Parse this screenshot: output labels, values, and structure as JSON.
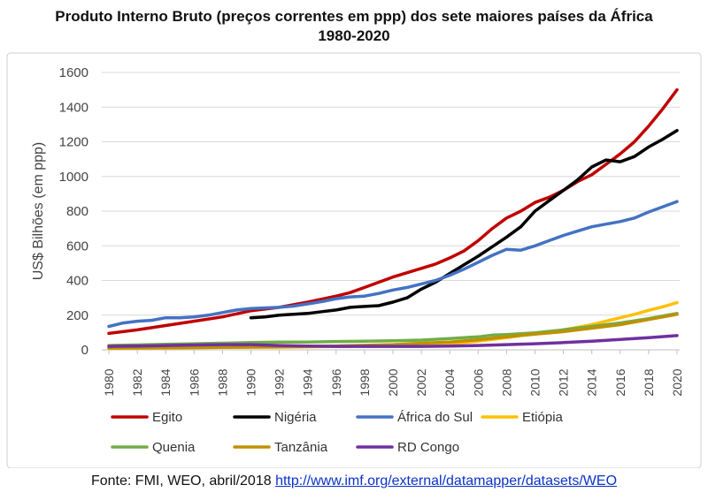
{
  "header": {
    "title_line1": "Produto Interno Bruto (preços correntes em ppp) dos sete maiores países da África",
    "title_line2": "1980-2020"
  },
  "footer": {
    "source_label": "Fonte: FMI, WEO, abril/2018",
    "source_link": "http://www.imf.org/external/datamapper/datasets/WEO"
  },
  "chart_data": {
    "type": "line",
    "ylabel": "US$ Bilhões (em ppp)",
    "xlabel": "",
    "ylim": [
      0,
      1600
    ],
    "yticks": [
      0,
      200,
      400,
      600,
      800,
      1000,
      1200,
      1400,
      1600
    ],
    "xlim": [
      1980,
      2020
    ],
    "xticks": [
      1980,
      1982,
      1984,
      1986,
      1988,
      1990,
      1992,
      1994,
      1996,
      1998,
      2000,
      2002,
      2004,
      2006,
      2008,
      2010,
      2012,
      2014,
      2016,
      2018,
      2020
    ],
    "grid": "horizontal",
    "legend_position": "bottom",
    "series": [
      {
        "name": "Egito",
        "color": "#c00000",
        "points": [
          [
            1980,
            95
          ],
          [
            1982,
            115
          ],
          [
            1984,
            140
          ],
          [
            1986,
            165
          ],
          [
            1988,
            190
          ],
          [
            1990,
            225
          ],
          [
            1992,
            245
          ],
          [
            1994,
            275
          ],
          [
            1996,
            310
          ],
          [
            1997,
            330
          ],
          [
            1998,
            360
          ],
          [
            2000,
            420
          ],
          [
            2002,
            470
          ],
          [
            2003,
            495
          ],
          [
            2004,
            530
          ],
          [
            2005,
            570
          ],
          [
            2006,
            630
          ],
          [
            2007,
            700
          ],
          [
            2008,
            760
          ],
          [
            2009,
            800
          ],
          [
            2010,
            850
          ],
          [
            2011,
            880
          ],
          [
            2012,
            920
          ],
          [
            2013,
            970
          ],
          [
            2014,
            1010
          ],
          [
            2015,
            1070
          ],
          [
            2016,
            1130
          ],
          [
            2017,
            1200
          ],
          [
            2018,
            1290
          ],
          [
            2019,
            1390
          ],
          [
            2020,
            1500
          ]
        ]
      },
      {
        "name": "Nigéria",
        "color": "#000000",
        "points": [
          [
            1990,
            185
          ],
          [
            1991,
            190
          ],
          [
            1992,
            200
          ],
          [
            1993,
            205
          ],
          [
            1994,
            210
          ],
          [
            1995,
            220
          ],
          [
            1996,
            230
          ],
          [
            1997,
            245
          ],
          [
            1998,
            250
          ],
          [
            1999,
            255
          ],
          [
            2000,
            275
          ],
          [
            2001,
            300
          ],
          [
            2002,
            350
          ],
          [
            2003,
            390
          ],
          [
            2004,
            440
          ],
          [
            2005,
            490
          ],
          [
            2006,
            540
          ],
          [
            2007,
            595
          ],
          [
            2008,
            650
          ],
          [
            2009,
            710
          ],
          [
            2010,
            800
          ],
          [
            2011,
            860
          ],
          [
            2012,
            920
          ],
          [
            2013,
            980
          ],
          [
            2014,
            1055
          ],
          [
            2015,
            1095
          ],
          [
            2016,
            1085
          ],
          [
            2017,
            1115
          ],
          [
            2018,
            1170
          ],
          [
            2019,
            1215
          ],
          [
            2020,
            1265
          ]
        ]
      },
      {
        "name": "África do Sul",
        "color": "#4472c4",
        "points": [
          [
            1980,
            135
          ],
          [
            1981,
            155
          ],
          [
            1982,
            165
          ],
          [
            1983,
            170
          ],
          [
            1984,
            185
          ],
          [
            1985,
            185
          ],
          [
            1986,
            190
          ],
          [
            1987,
            200
          ],
          [
            1988,
            215
          ],
          [
            1989,
            230
          ],
          [
            1990,
            238
          ],
          [
            1992,
            245
          ],
          [
            1993,
            252
          ],
          [
            1994,
            265
          ],
          [
            1995,
            278
          ],
          [
            1996,
            295
          ],
          [
            1997,
            305
          ],
          [
            1998,
            310
          ],
          [
            1999,
            325
          ],
          [
            2000,
            345
          ],
          [
            2001,
            360
          ],
          [
            2002,
            380
          ],
          [
            2003,
            400
          ],
          [
            2004,
            430
          ],
          [
            2005,
            465
          ],
          [
            2006,
            505
          ],
          [
            2007,
            545
          ],
          [
            2008,
            580
          ],
          [
            2009,
            575
          ],
          [
            2010,
            600
          ],
          [
            2011,
            630
          ],
          [
            2012,
            660
          ],
          [
            2013,
            685
          ],
          [
            2014,
            710
          ],
          [
            2015,
            725
          ],
          [
            2016,
            740
          ],
          [
            2017,
            760
          ],
          [
            2018,
            795
          ],
          [
            2019,
            825
          ],
          [
            2020,
            855
          ]
        ]
      },
      {
        "name": "Etiópia",
        "color": "#ffc000",
        "points": [
          [
            1980,
            8
          ],
          [
            1984,
            10
          ],
          [
            1988,
            14
          ],
          [
            1992,
            15
          ],
          [
            1996,
            20
          ],
          [
            2000,
            25
          ],
          [
            2002,
            28
          ],
          [
            2004,
            35
          ],
          [
            2006,
            50
          ],
          [
            2008,
            70
          ],
          [
            2010,
            95
          ],
          [
            2012,
            115
          ],
          [
            2013,
            130
          ],
          [
            2014,
            145
          ],
          [
            2015,
            165
          ],
          [
            2016,
            185
          ],
          [
            2017,
            205
          ],
          [
            2018,
            228
          ],
          [
            2019,
            248
          ],
          [
            2020,
            272
          ]
        ]
      },
      {
        "name": "Quenia",
        "color": "#70ad47",
        "points": [
          [
            1980,
            25
          ],
          [
            1984,
            32
          ],
          [
            1988,
            38
          ],
          [
            1990,
            42
          ],
          [
            1992,
            45
          ],
          [
            1994,
            45
          ],
          [
            1996,
            48
          ],
          [
            1998,
            50
          ],
          [
            2000,
            52
          ],
          [
            2002,
            56
          ],
          [
            2004,
            65
          ],
          [
            2006,
            75
          ],
          [
            2007,
            85
          ],
          [
            2008,
            88
          ],
          [
            2010,
            98
          ],
          [
            2012,
            115
          ],
          [
            2014,
            135
          ],
          [
            2016,
            155
          ],
          [
            2018,
            180
          ],
          [
            2020,
            210
          ]
        ]
      },
      {
        "name": "Tanzânia",
        "color": "#bf9000",
        "points": [
          [
            1980,
            10
          ],
          [
            1984,
            12
          ],
          [
            1988,
            14
          ],
          [
            1992,
            18
          ],
          [
            1996,
            22
          ],
          [
            2000,
            30
          ],
          [
            2002,
            38
          ],
          [
            2004,
            45
          ],
          [
            2006,
            58
          ],
          [
            2008,
            75
          ],
          [
            2010,
            90
          ],
          [
            2012,
            105
          ],
          [
            2014,
            125
          ],
          [
            2016,
            145
          ],
          [
            2018,
            175
          ],
          [
            2020,
            205
          ]
        ]
      },
      {
        "name": "RD Congo",
        "color": "#7030a0",
        "points": [
          [
            1980,
            20
          ],
          [
            1982,
            22
          ],
          [
            1984,
            25
          ],
          [
            1986,
            28
          ],
          [
            1988,
            30
          ],
          [
            1990,
            30
          ],
          [
            1992,
            25
          ],
          [
            1994,
            22
          ],
          [
            1996,
            20
          ],
          [
            1998,
            20
          ],
          [
            2000,
            20
          ],
          [
            2002,
            20
          ],
          [
            2004,
            22
          ],
          [
            2006,
            25
          ],
          [
            2008,
            30
          ],
          [
            2010,
            35
          ],
          [
            2012,
            42
          ],
          [
            2014,
            50
          ],
          [
            2016,
            60
          ],
          [
            2018,
            70
          ],
          [
            2020,
            82
          ]
        ]
      }
    ]
  }
}
